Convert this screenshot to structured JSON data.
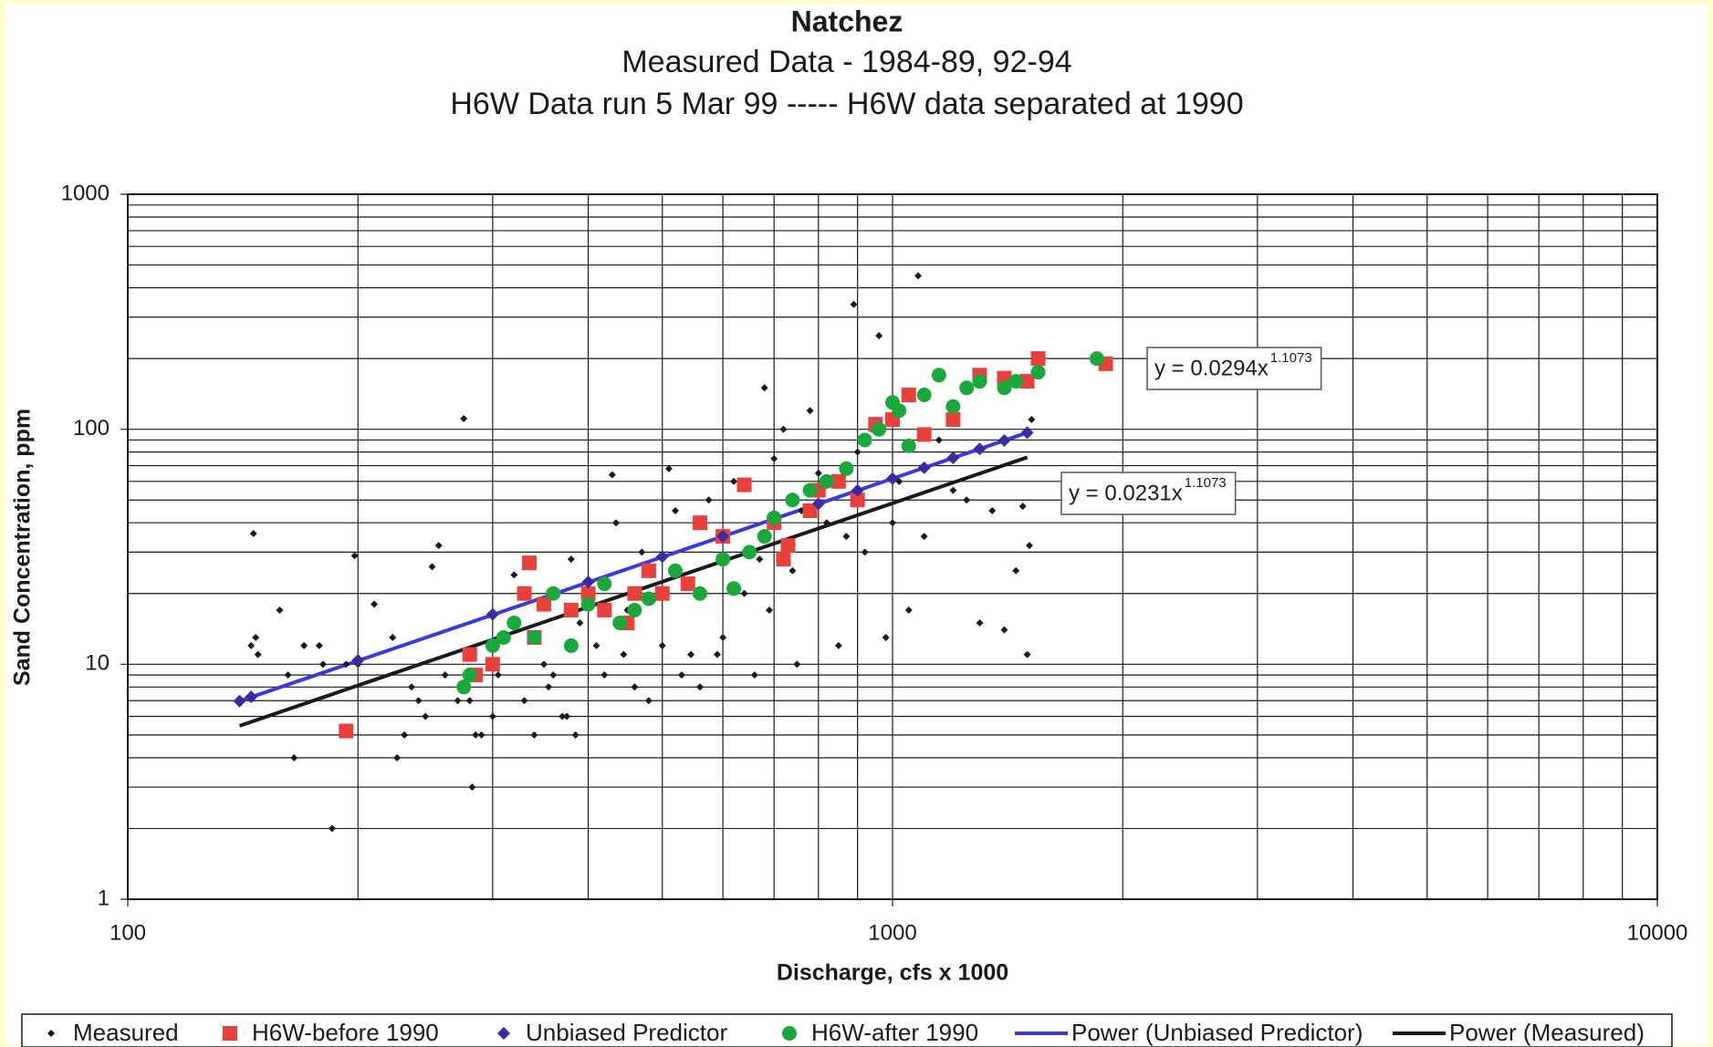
{
  "chart_data": {
    "type": "scatter",
    "title": "Natchez",
    "subtitle": "Measured Data - 1984-89, 92-94",
    "subtitle2": "H6W Data run 5 Mar 99  -----  H6W data separated at 1990",
    "x_label": "Discharge, cfs x 1000",
    "y_label": "Sand Concentration, ppm",
    "xscale": "log",
    "yscale": "log",
    "grid": true,
    "legend": "bottom",
    "xlim": [
      100,
      10000
    ],
    "xticks": [
      100,
      1000,
      10000
    ],
    "ylim": [
      1,
      1000
    ],
    "yticks": [
      1,
      10,
      100,
      1000
    ],
    "xgrid_minor": [
      200,
      300,
      400,
      500,
      600,
      700,
      800,
      900,
      2000,
      3000,
      4000,
      5000,
      6000,
      7000,
      8000,
      9000
    ],
    "ygrid_minor": [
      2,
      3,
      4,
      5,
      6,
      7,
      8,
      9,
      20,
      30,
      40,
      50,
      60,
      70,
      80,
      90,
      200,
      300,
      400,
      500,
      600,
      700,
      800,
      900
    ],
    "annotations": [
      {
        "text": "y = 0.0294x",
        "exponent": "1.1073"
      },
      {
        "text": "y = 0.0231x",
        "exponent": "1.1073"
      }
    ],
    "series": [
      {
        "name": "Measured",
        "kind": "point",
        "marker": "diamond-small",
        "color": "#1a1a1a",
        "x": [
          146,
          145,
          147,
          148,
          158,
          162,
          165,
          170,
          178,
          180,
          185,
          193,
          198,
          200,
          210,
          222,
          225,
          230,
          235,
          240,
          245,
          250,
          255,
          260,
          270,
          275,
          280,
          282,
          285,
          290,
          300,
          305,
          320,
          330,
          335,
          340,
          350,
          355,
          360,
          370,
          375,
          380,
          385,
          390,
          400,
          410,
          420,
          430,
          435,
          445,
          450,
          460,
          470,
          480,
          500,
          510,
          520,
          530,
          545,
          560,
          575,
          590,
          600,
          620,
          640,
          660,
          670,
          680,
          690,
          700,
          720,
          740,
          750,
          760,
          780,
          800,
          820,
          850,
          870,
          890,
          900,
          920,
          940,
          960,
          980,
          1000,
          1020,
          1050,
          1080,
          1100,
          1150,
          1200,
          1250,
          1300,
          1350,
          1400,
          1450,
          1480,
          1500,
          1510,
          1520
        ],
        "values": [
          36,
          12,
          13,
          11,
          17,
          9,
          4,
          12,
          12,
          10,
          2,
          10,
          29,
          10,
          18,
          13,
          4,
          5,
          8,
          7,
          6,
          26,
          32,
          9,
          7,
          111,
          7,
          3,
          5,
          5,
          6,
          9,
          24,
          7,
          28,
          5,
          10,
          8,
          9,
          6,
          6,
          28,
          5,
          15,
          20,
          12,
          9,
          64,
          40,
          11,
          17,
          8,
          30,
          7,
          12,
          68,
          45,
          9,
          11,
          8,
          50,
          11,
          13,
          60,
          20,
          9,
          28,
          150,
          17,
          75,
          100,
          25,
          10,
          45,
          120,
          65,
          40,
          12,
          35,
          340,
          80,
          30,
          100,
          250,
          13,
          40,
          60,
          17,
          450,
          35,
          90,
          55,
          50,
          15,
          45,
          14,
          25,
          47,
          11,
          32,
          110
        ]
      },
      {
        "name": "H6W-before 1990",
        "kind": "point",
        "marker": "square",
        "color": "#e8413c",
        "x": [
          193,
          280,
          285,
          300,
          330,
          335,
          340,
          350,
          380,
          400,
          420,
          450,
          460,
          480,
          500,
          540,
          560,
          600,
          640,
          700,
          720,
          730,
          780,
          800,
          850,
          900,
          950,
          1000,
          1050,
          1100,
          1200,
          1300,
          1400,
          1500,
          1550,
          1900
        ],
        "values": [
          5.2,
          11,
          9,
          10,
          20,
          27,
          13,
          18,
          17,
          20,
          17,
          15,
          20,
          25,
          20,
          22,
          40,
          35,
          58,
          40,
          28,
          32,
          45,
          55,
          60,
          50,
          105,
          110,
          140,
          95,
          110,
          170,
          165,
          160,
          200,
          190
        ]
      },
      {
        "name": "Unbiased Predictor",
        "kind": "point",
        "marker": "diamond",
        "color": "#3b2ba0",
        "x": [
          140,
          145,
          200,
          300,
          400,
          500,
          600,
          700,
          800,
          900,
          1000,
          1100,
          1200,
          1300,
          1400,
          1500
        ],
        "values": [
          6.97,
          7.26,
          10.4,
          16.3,
          22.4,
          28.7,
          35.0,
          41.6,
          48.2,
          54.9,
          61.7,
          68.6,
          75.6,
          82.5,
          89.6,
          96.7
        ]
      },
      {
        "name": "H6W-after 1990",
        "kind": "point",
        "marker": "circle",
        "color": "#1aa83c",
        "x": [
          275,
          280,
          300,
          310,
          320,
          340,
          360,
          380,
          400,
          420,
          440,
          460,
          480,
          520,
          560,
          600,
          620,
          650,
          680,
          700,
          740,
          780,
          820,
          870,
          920,
          960,
          1000,
          1020,
          1050,
          1100,
          1150,
          1200,
          1250,
          1300,
          1400,
          1450,
          1550,
          1850
        ],
        "values": [
          8,
          9,
          12,
          13,
          15,
          13,
          20,
          12,
          18,
          22,
          15,
          17,
          19,
          25,
          20,
          28,
          21,
          30,
          35,
          42,
          50,
          55,
          60,
          68,
          90,
          100,
          130,
          120,
          85,
          140,
          170,
          125,
          150,
          160,
          150,
          160,
          175,
          200
        ]
      },
      {
        "name": "Power (Unbiased Predictor)",
        "kind": "line",
        "color": "#3a3adc",
        "x": [
          140,
          1500
        ],
        "values": [
          6.97,
          96.7
        ]
      },
      {
        "name": "Power (Measured)",
        "kind": "line",
        "color": "#1a1a1a",
        "x": [
          140,
          1500
        ],
        "values": [
          5.47,
          75.95
        ]
      }
    ]
  }
}
